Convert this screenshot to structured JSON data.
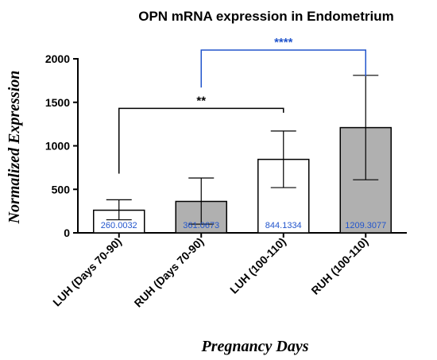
{
  "chart_data": {
    "type": "bar",
    "title": "OPN mRNA expression in Endometrium",
    "xlabel": "Pregnancy Days",
    "ylabel": "Normalized Expression",
    "ylim": [
      0,
      2000
    ],
    "yticks": [
      0,
      500,
      1000,
      1500,
      2000
    ],
    "categories": [
      "LUH  (Days 70-90)",
      "RUH  (Days 70-90)",
      "LUH (100-110)",
      "RUH (100-110)"
    ],
    "values": [
      260.0032,
      361.0673,
      844.1334,
      1209.3077
    ],
    "value_labels": [
      "260.0032",
      "361.0673",
      "844.1334",
      "1209.3077"
    ],
    "error_low": [
      150,
      100,
      520,
      610
    ],
    "error_high": [
      380,
      630,
      1170,
      1810
    ],
    "bar_fills": [
      "#ffffff",
      "#b0b0b0",
      "#ffffff",
      "#b0b0b0"
    ],
    "value_label_color": "#2255cc",
    "significance": [
      {
        "from": 0,
        "to": 2,
        "label": "**",
        "y": 1430,
        "drop": 680,
        "color": "#000000"
      },
      {
        "from": 1,
        "to": 3,
        "label": "****",
        "y": 2100,
        "drop": 1670,
        "color": "#2255cc"
      }
    ]
  }
}
